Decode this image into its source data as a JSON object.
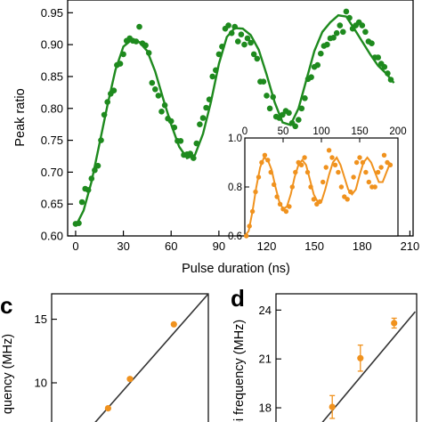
{
  "colors": {
    "green": "#1e8a1e",
    "orange": "#f0921e",
    "axis": "#000000",
    "fit_gray": "#333333"
  },
  "chart_data": [
    {
      "panel": "b",
      "type": "scatter",
      "xlabel": "Pulse duration (ns)",
      "ylabel": "Peak ratio",
      "xlim": [
        -5,
        212
      ],
      "ylim": [
        0.6,
        0.97
      ],
      "x_ticks": [
        0,
        30,
        60,
        90,
        120,
        150,
        180,
        210
      ],
      "y_ticks": [
        0.6,
        0.65,
        0.7,
        0.75,
        0.8,
        0.85,
        0.9,
        0.95
      ],
      "x_tick_labels": [
        "0",
        "30",
        "60",
        "90",
        "120",
        "150",
        "180",
        "210"
      ],
      "y_tick_labels": [
        "0.60",
        "0.65",
        "0.70",
        "0.75",
        "0.80",
        "0.85",
        "0.90",
        "0.95"
      ],
      "grid": false,
      "series": [
        {
          "style": "points",
          "color": "green",
          "x": [
            0,
            2,
            4,
            6,
            8,
            10,
            12,
            14,
            16,
            18,
            20,
            22,
            24,
            26,
            28,
            30,
            32,
            34,
            36,
            38,
            40,
            42,
            44,
            46,
            48,
            50,
            52,
            54,
            56,
            58,
            60,
            62,
            64,
            66,
            68,
            70,
            72,
            74,
            76,
            78,
            80,
            82,
            84,
            86,
            88,
            90,
            92,
            94,
            96,
            98,
            100,
            102,
            104,
            106,
            108,
            110,
            112,
            114,
            116,
            118,
            120,
            122,
            124,
            126,
            128,
            130,
            132,
            134,
            136,
            138,
            140,
            142,
            144,
            146,
            148,
            150,
            152,
            154,
            156,
            158,
            160,
            162,
            164,
            166,
            168,
            170,
            172,
            174,
            176,
            178,
            180,
            182,
            184,
            186,
            188,
            190,
            192,
            194,
            196,
            198
          ],
          "y": [
            0.619,
            0.62,
            0.653,
            0.674,
            0.672,
            0.69,
            0.703,
            0.71,
            0.75,
            0.79,
            0.81,
            0.823,
            0.828,
            0.868,
            0.87,
            0.885,
            0.906,
            0.91,
            0.906,
            0.905,
            0.928,
            0.902,
            0.899,
            0.887,
            0.84,
            0.83,
            0.82,
            0.795,
            0.805,
            0.784,
            0.78,
            0.77,
            0.749,
            0.749,
            0.727,
            0.728,
            0.729,
            0.722,
            0.745,
            0.775,
            0.785,
            0.801,
            0.814,
            0.85,
            0.86,
            0.885,
            0.897,
            0.925,
            0.93,
            0.918,
            0.928,
            0.905,
            0.916,
            0.9,
            0.91,
            0.903,
            0.885,
            0.878,
            0.842,
            0.842,
            0.82,
            0.8,
            0.818,
            0.787,
            0.785,
            0.79,
            0.796,
            0.793,
            0.777,
            0.772,
            0.782,
            0.8,
            0.816,
            0.846,
            0.849,
            0.865,
            0.868,
            0.886,
            0.898,
            0.9,
            0.91,
            0.911,
            0.918,
            0.93,
            0.92,
            0.952,
            0.942,
            0.925,
            0.93,
            0.935,
            0.93,
            0.92,
            0.905,
            0.902,
            0.88,
            0.88,
            0.87,
            0.865,
            0.855,
            0.845
          ]
        },
        {
          "style": "fit-line",
          "color": "green",
          "x": [
            0,
            5,
            10,
            15,
            20,
            25,
            30,
            35,
            40,
            45,
            50,
            55,
            60,
            65,
            70,
            75,
            80,
            85,
            90,
            95,
            100,
            105,
            110,
            115,
            120,
            125,
            130,
            135,
            140,
            145,
            150,
            155,
            160,
            165,
            170,
            175,
            180,
            185,
            190,
            195,
            200
          ],
          "y": [
            0.615,
            0.64,
            0.685,
            0.745,
            0.805,
            0.86,
            0.897,
            0.907,
            0.904,
            0.89,
            0.858,
            0.815,
            0.775,
            0.74,
            0.722,
            0.727,
            0.76,
            0.81,
            0.87,
            0.912,
            0.926,
            0.925,
            0.915,
            0.892,
            0.853,
            0.81,
            0.778,
            0.774,
            0.8,
            0.845,
            0.89,
            0.92,
            0.935,
            0.946,
            0.944,
            0.925,
            0.905,
            0.885,
            0.867,
            0.855,
            0.84
          ]
        }
      ]
    },
    {
      "panel": "b-inset",
      "type": "scatter",
      "xlim": [
        0,
        200
      ],
      "ylim": [
        0.6,
        1.0
      ],
      "x_ticks": [
        0,
        50,
        100,
        150,
        200
      ],
      "y_ticks": [
        0.6,
        0.8,
        1.0
      ],
      "x_tick_labels": [
        "0",
        "50",
        "100",
        "150",
        "200"
      ],
      "y_tick_labels": [
        "0.6",
        "0.8",
        "1.0"
      ],
      "grid": false,
      "series": [
        {
          "style": "points",
          "color": "orange",
          "x": [
            2,
            6,
            10,
            14,
            18,
            22,
            26,
            30,
            34,
            38,
            42,
            46,
            50,
            54,
            58,
            62,
            66,
            70,
            74,
            78,
            82,
            86,
            90,
            94,
            98,
            102,
            106,
            110,
            114,
            118,
            122,
            126,
            130,
            134,
            138,
            142,
            146,
            150,
            154,
            158,
            162,
            166,
            170,
            174,
            178,
            182,
            186,
            190
          ],
          "y": [
            0.6,
            0.64,
            0.7,
            0.78,
            0.84,
            0.9,
            0.93,
            0.91,
            0.86,
            0.81,
            0.76,
            0.73,
            0.71,
            0.7,
            0.72,
            0.8,
            0.86,
            0.9,
            0.89,
            0.92,
            0.86,
            0.8,
            0.75,
            0.73,
            0.74,
            0.82,
            0.88,
            0.95,
            0.92,
            0.89,
            0.86,
            0.8,
            0.76,
            0.75,
            0.78,
            0.84,
            0.9,
            0.92,
            0.9,
            0.86,
            0.82,
            0.8,
            0.8,
            0.86,
            0.88,
            0.93,
            0.9,
            0.89
          ]
        },
        {
          "style": "fit-line",
          "color": "orange",
          "x": [
            0,
            5,
            10,
            15,
            20,
            25,
            30,
            35,
            40,
            45,
            50,
            55,
            60,
            65,
            70,
            75,
            80,
            85,
            90,
            95,
            100,
            105,
            110,
            115,
            120,
            125,
            130,
            135,
            140,
            145,
            150,
            155,
            160,
            165,
            170,
            175,
            180,
            185,
            190
          ],
          "y": [
            0.57,
            0.62,
            0.7,
            0.8,
            0.88,
            0.92,
            0.91,
            0.87,
            0.8,
            0.74,
            0.71,
            0.72,
            0.77,
            0.84,
            0.89,
            0.91,
            0.89,
            0.83,
            0.77,
            0.74,
            0.74,
            0.79,
            0.85,
            0.9,
            0.92,
            0.89,
            0.84,
            0.79,
            0.77,
            0.79,
            0.85,
            0.9,
            0.92,
            0.9,
            0.86,
            0.82,
            0.82,
            0.86,
            0.9
          ]
        }
      ]
    },
    {
      "panel": "c",
      "label": "c",
      "type": "scatter",
      "ylabel": "quency (MHz)",
      "y_ticks": [
        10,
        15
      ],
      "y_tick_labels": [
        "10",
        "15"
      ],
      "ylim": [
        6.5,
        17
      ],
      "xlim": [
        0,
        1
      ],
      "series": [
        {
          "style": "points",
          "color": "orange",
          "x": [
            0.36,
            0.5,
            0.78
          ],
          "y": [
            8.0,
            10.3,
            14.6
          ]
        },
        {
          "style": "fit-line",
          "color": "fit_gray",
          "x": [
            0.25,
            1.0
          ],
          "y": [
            6.5,
            17.0
          ]
        }
      ]
    },
    {
      "panel": "d",
      "label": "d",
      "type": "scatter",
      "ylabel": "oi frequency (MHz)",
      "y_ticks": [
        18,
        21,
        24
      ],
      "y_tick_labels": [
        "18",
        "21",
        "24"
      ],
      "ylim": [
        16.8,
        25
      ],
      "xlim": [
        0,
        1
      ],
      "series": [
        {
          "style": "points",
          "color": "orange",
          "x": [
            0.4,
            0.6,
            0.84
          ],
          "y": [
            18.05,
            21.05,
            23.2
          ],
          "err": [
            0.7,
            0.8,
            0.3
          ]
        },
        {
          "style": "fit-line",
          "color": "fit_gray",
          "x": [
            0.3,
            0.99
          ],
          "y": [
            16.8,
            23.9
          ]
        }
      ]
    }
  ]
}
